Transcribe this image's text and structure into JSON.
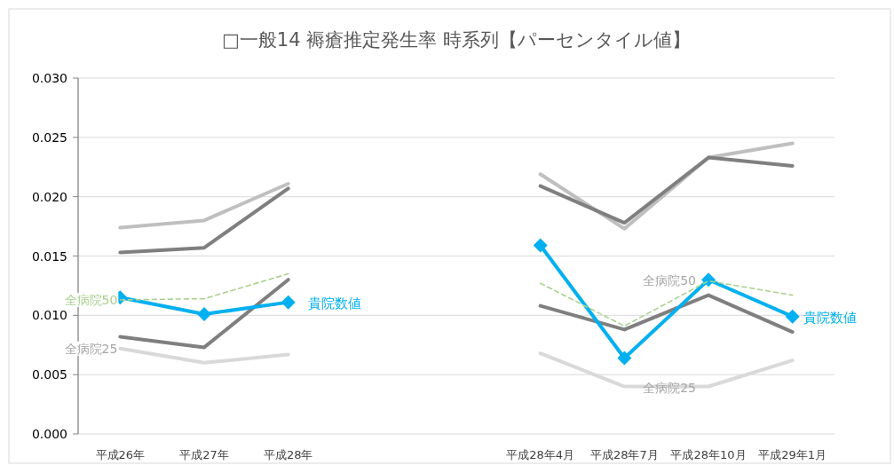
{
  "chart_data": {
    "type": "line",
    "title": "□一般14 褥瘡推定発生率 時系列【パーセンタイル値】",
    "categories": [
      "平成26年",
      "平成27年",
      "平成28年",
      null,
      null,
      "平成28年4月",
      "平成28年7月",
      "平成28年10月",
      "平成29年1月"
    ],
    "series": [
      {
        "color": "#bfbfbf",
        "values": [
          0.0174,
          0.018,
          0.0211,
          null,
          null,
          0.0219,
          0.0173,
          0.0233,
          0.0245
        ]
      },
      {
        "color": "#7f7f7f",
        "values": [
          0.0153,
          0.0157,
          0.0207,
          null,
          null,
          0.0209,
          0.0178,
          0.0233,
          0.0226
        ]
      },
      {
        "color": "#7f7f7f",
        "values": [
          0.0082,
          0.0073,
          0.013,
          null,
          null,
          0.0108,
          0.0088,
          0.0117,
          0.0086
        ]
      },
      {
        "name": "全病院25",
        "color": "#d9d9d9",
        "values": [
          0.0072,
          0.006,
          0.0067,
          null,
          null,
          0.0068,
          0.004,
          0.004,
          0.0062
        ]
      },
      {
        "name": "貴院数値",
        "color": "#00b0f0",
        "marker": "diamond",
        "values": [
          0.0115,
          0.0101,
          0.0111,
          null,
          null,
          0.0159,
          0.0064,
          0.013,
          0.0099
        ]
      },
      {
        "name": "全病院50",
        "color": "#a9d18e",
        "line_style": "dashed",
        "values": [
          0.0113,
          0.0114,
          0.0135,
          null,
          null,
          0.0127,
          0.0091,
          0.0129,
          0.0117
        ]
      }
    ],
    "ylim": [
      0,
      0.03
    ],
    "yticks": [
      {
        "value": 0,
        "label": "0.000"
      },
      {
        "value": 0.005,
        "label": "0.005"
      },
      {
        "value": 0.01,
        "label": "0.010"
      },
      {
        "value": 0.015,
        "label": "0.015"
      },
      {
        "value": 0.02,
        "label": "0.020"
      },
      {
        "value": 0.025,
        "label": "0.025"
      },
      {
        "value": 0.03,
        "label": "0.030"
      }
    ],
    "grid": "y",
    "annotations": [
      {
        "text": "全病院50",
        "x": "平成28年10月",
        "y": 0.013
      },
      {
        "text": "全病院25",
        "x": "平成28年10月",
        "y": 0.004
      },
      {
        "text": "貴院数値",
        "x": "平成29年1月",
        "y": 0.0099
      }
    ]
  }
}
